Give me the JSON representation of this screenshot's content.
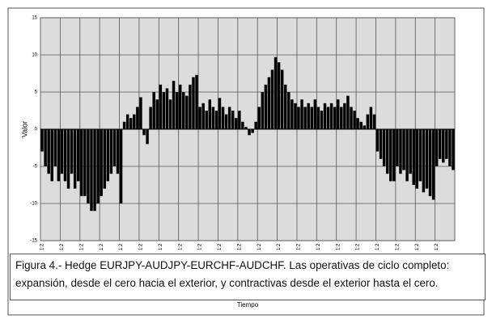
{
  "chart_data": {
    "type": "bar",
    "y_label": "Valor",
    "x_label": "Tiempo",
    "caption": "Figura 4.- Hedge EURJPY-AUDJPY-EURCHF-AUDCHF. Las operativas de ciclo completo: expansión, desde el cero hacia el exterior, y contractivas desde el exterior hasta el cero.",
    "color": "#000000",
    "background": "#dcdcdc",
    "grid": true,
    "ylim": [
      -15,
      15
    ],
    "yticks": [
      -15,
      -10,
      -5,
      0,
      5,
      10,
      15
    ],
    "categories": [
      "1:2",
      null,
      null,
      null,
      null,
      null,
      "1:2",
      null,
      null,
      null,
      null,
      null,
      "1:2",
      null,
      null,
      null,
      null,
      null,
      "1:2",
      null,
      null,
      null,
      null,
      null,
      "1:2",
      null,
      null,
      null,
      null,
      null,
      "1:2",
      null,
      null,
      null,
      null,
      null,
      "1:2",
      null,
      null,
      null,
      null,
      null,
      "1:2",
      null,
      null,
      null,
      null,
      null,
      "1:2",
      null,
      null,
      null,
      null,
      null,
      "1:2",
      null,
      null,
      null,
      null,
      null,
      "1:2",
      null,
      null,
      null,
      null,
      null,
      "1:2",
      null,
      null,
      null,
      null,
      null,
      "1:2",
      null,
      null,
      null,
      null,
      null,
      "1:2",
      null,
      null,
      null,
      null,
      null,
      "1:2",
      null,
      null,
      null,
      null,
      null,
      "1:2",
      null,
      null,
      null,
      null,
      null,
      "1:2",
      null,
      null,
      null,
      null,
      null,
      "1:2",
      null,
      null,
      null,
      null,
      null,
      "1:2",
      null,
      null,
      null,
      null,
      null,
      "1:2",
      null,
      null,
      null,
      null,
      null,
      "1:2",
      null,
      null,
      null,
      null,
      null
    ],
    "values": [
      -3,
      -5,
      -6,
      -7,
      -5,
      -7,
      -6,
      -7,
      -8,
      -6,
      -8,
      -7,
      -9,
      -9,
      -10,
      -11,
      -11,
      -10,
      -9,
      -8,
      -7,
      -6,
      -5,
      -6,
      -10,
      1,
      2,
      1.5,
      2,
      3,
      4.3,
      -0.8,
      -2,
      3,
      5,
      4,
      6,
      5,
      5.5,
      4,
      6.5,
      5,
      6,
      5,
      4.5,
      6,
      7,
      7.3,
      3,
      3.5,
      2.5,
      4,
      3,
      2.5,
      4.2,
      3,
      2,
      3,
      2.5,
      1.5,
      2.5,
      1,
      0.3,
      -0.8,
      -0.5,
      1,
      3,
      5,
      6,
      7,
      8,
      9.7,
      9,
      8,
      6,
      5,
      4,
      3.5,
      3,
      4,
      3,
      3.5,
      3,
      4,
      3,
      2.5,
      3.5,
      3,
      3.5,
      3,
      4,
      3,
      3.5,
      4.5,
      3,
      2.5,
      1.5,
      1,
      0.5,
      2,
      3,
      2,
      -3,
      -4,
      -5,
      -6,
      -7,
      -7,
      -5,
      -6,
      -5.5,
      -7,
      -6,
      -7.5,
      -8,
      -7,
      -8.5,
      -8,
      -9,
      -9.5,
      -5,
      -4,
      -4.5,
      -4,
      -5,
      -5.5
    ]
  }
}
